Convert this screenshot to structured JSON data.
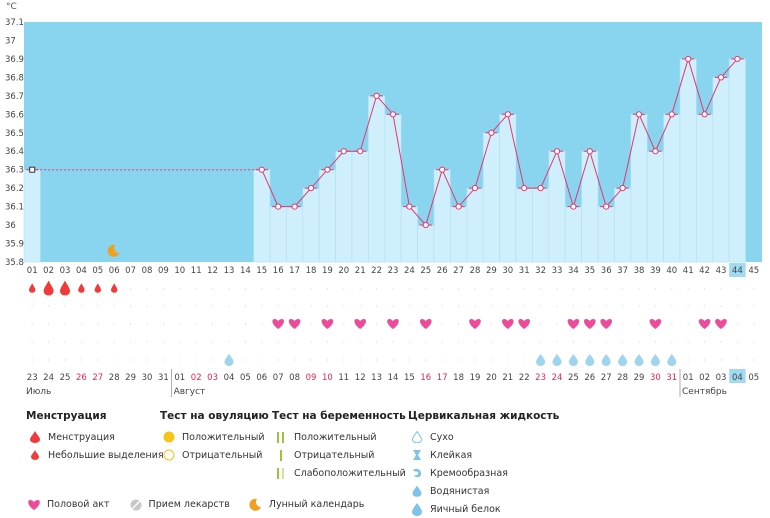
{
  "chart_data": {
    "type": "bar",
    "unit": "°C",
    "ylim": [
      35.8,
      37.1
    ],
    "y_ticks": [
      "37.1",
      "37",
      "36.9",
      "36.8",
      "36.7",
      "36.6",
      "36.5",
      "36.4",
      "36.3",
      "36.2",
      "36.1",
      "36",
      "35.9",
      "35.8"
    ],
    "cycle_days": [
      "01",
      "02",
      "03",
      "04",
      "05",
      "06",
      "07",
      "08",
      "09",
      "10",
      "11",
      "12",
      "13",
      "14",
      "15",
      "16",
      "17",
      "18",
      "19",
      "20",
      "21",
      "22",
      "23",
      "24",
      "25",
      "26",
      "27",
      "28",
      "29",
      "30",
      "31",
      "32",
      "33",
      "34",
      "35",
      "36",
      "37",
      "38",
      "39",
      "40",
      "41",
      "42",
      "43",
      "44",
      "45"
    ],
    "dates": [
      "23",
      "24",
      "25",
      "26",
      "27",
      "28",
      "29",
      "30",
      "31",
      "01",
      "02",
      "03",
      "04",
      "05",
      "06",
      "07",
      "08",
      "09",
      "10",
      "11",
      "12",
      "13",
      "14",
      "15",
      "16",
      "17",
      "18",
      "19",
      "20",
      "21",
      "22",
      "23",
      "24",
      "25",
      "26",
      "27",
      "28",
      "29",
      "30",
      "31",
      "01",
      "02",
      "03",
      "04",
      "05"
    ],
    "red_dates_idx": [
      3,
      4,
      10,
      11,
      17,
      18,
      24,
      25,
      31,
      32,
      38,
      39
    ],
    "months": [
      {
        "label": "Июль",
        "start": 0
      },
      {
        "label": "Август",
        "start": 9
      },
      {
        "label": "Сентябрь",
        "start": 40
      }
    ],
    "current_day_idx": 43,
    "temperatures": [
      36.3,
      null,
      null,
      null,
      null,
      null,
      null,
      null,
      null,
      null,
      null,
      null,
      null,
      null,
      36.3,
      36.1,
      36.1,
      36.2,
      36.3,
      36.4,
      36.4,
      36.7,
      36.6,
      36.1,
      36.0,
      36.3,
      36.1,
      36.2,
      36.5,
      36.6,
      36.2,
      36.2,
      36.4,
      36.1,
      36.4,
      36.1,
      36.2,
      36.6,
      36.4,
      36.6,
      36.9,
      36.6,
      36.8,
      36.9,
      null
    ],
    "menstruation_heavy": [
      1,
      2
    ],
    "menstruation_light": [
      0,
      3,
      4,
      5
    ],
    "moon_day_idx": 5,
    "intercourse_days": [
      15,
      16,
      18,
      20,
      22,
      24,
      27,
      29,
      30,
      33,
      34,
      35,
      38,
      41,
      42
    ],
    "cervical_eggwhite": [
      12,
      31,
      32,
      33,
      34,
      35,
      36,
      37,
      38,
      39
    ]
  },
  "legend": {
    "menstruation": {
      "title": "Менструация",
      "items": [
        "Менструация",
        "Небольшие выделения"
      ]
    },
    "ovulation_test": {
      "title": "Тест на овуляцию",
      "items": [
        "Положительный",
        "Отрицательный"
      ]
    },
    "pregnancy_test": {
      "title": "Тест на беременность",
      "items": [
        "Положительный",
        "Отрицательный",
        "Слабоположительный"
      ]
    },
    "cervical_fluid": {
      "title": "Цервикальная жидкость",
      "items": [
        "Сухо",
        "Клейкая",
        "Кремообразная",
        "Водянистая",
        "Яичный белок"
      ]
    },
    "bottom": [
      "Половой акт",
      "Прием лекарств",
      "Лунный календарь"
    ]
  },
  "colors": {
    "sky": "#89d5ef",
    "bar": "#cfeffc",
    "line": "#e2386e",
    "heart": "#ee4a9a",
    "drop": "#ef3b3b",
    "fluid": "#9fd4ef",
    "highlight": "#9fd9f2",
    "red_text": "#e2255a",
    "test_green": "#9ac43a"
  }
}
